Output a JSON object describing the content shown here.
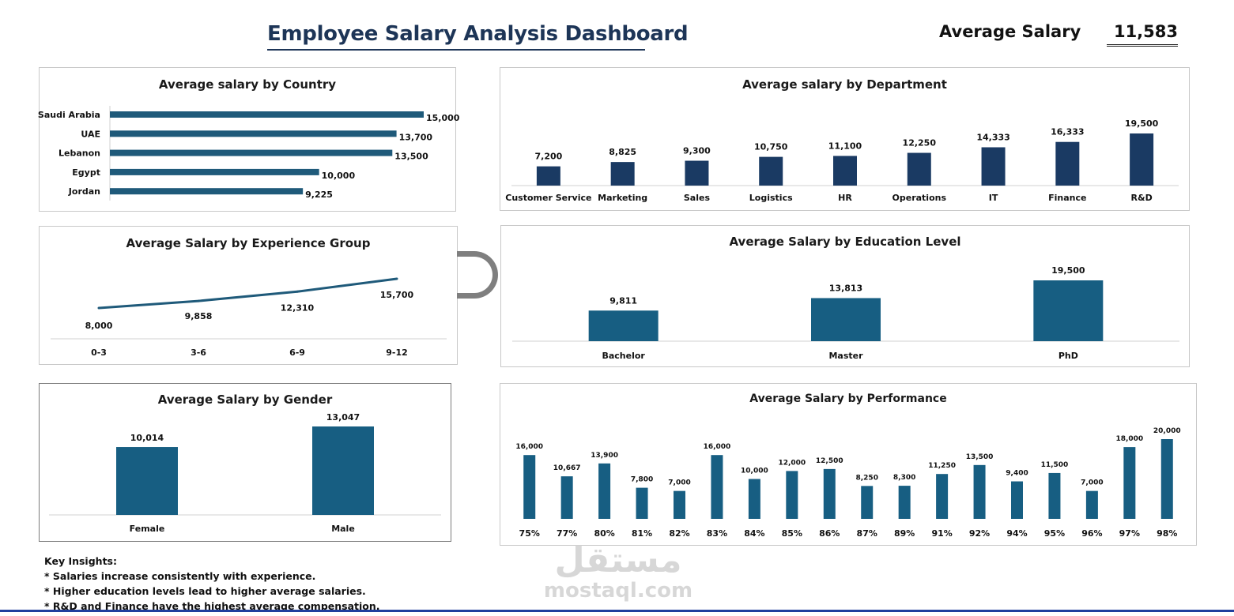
{
  "header": {
    "title": "Employee Salary Analysis Dashboard",
    "kpi_label": "Average Salary",
    "kpi_value": "11,583"
  },
  "colors": {
    "bar_dark": "#1a3a63",
    "bar_mid": "#175e82",
    "line": "#1f5a7a"
  },
  "chart_data": [
    {
      "id": "country",
      "type": "bar",
      "orientation": "horizontal",
      "title": "Average salary by Country",
      "categories": [
        "Saudi Arabia",
        "UAE",
        "Lebanon",
        "Egypt",
        "Jordan"
      ],
      "values": [
        15000,
        13700,
        13500,
        10000,
        9225
      ],
      "labels": [
        "15,000",
        "13,700",
        "13,500",
        "10,000",
        "9,225"
      ],
      "xlim": [
        0,
        15000
      ]
    },
    {
      "id": "department",
      "type": "bar",
      "title": "Average salary by Department",
      "categories": [
        "Customer Service",
        "Marketing",
        "Sales",
        "Logistics",
        "HR",
        "Operations",
        "IT",
        "Finance",
        "R&D"
      ],
      "values": [
        7200,
        8825,
        9300,
        10750,
        11100,
        12250,
        14333,
        16333,
        19500
      ],
      "labels": [
        "7,200",
        "8,825",
        "9,300",
        "10,750",
        "11,100",
        "12,250",
        "14,333",
        "16,333",
        "19,500"
      ],
      "ylim": [
        0,
        20000
      ]
    },
    {
      "id": "experience",
      "type": "line",
      "title": "Average Salary by Experience Group",
      "categories": [
        "0-3",
        "3-6",
        "6-9",
        "9-12"
      ],
      "values": [
        8000,
        9858,
        12310,
        15700
      ],
      "labels": [
        "8,000",
        "9,858",
        "12,310",
        "15,700"
      ],
      "ylim": [
        0,
        20000
      ]
    },
    {
      "id": "education",
      "type": "bar",
      "title": "Average Salary by Education Level",
      "categories": [
        "Bachelor",
        "Master",
        "PhD"
      ],
      "values": [
        9811,
        13813,
        19500
      ],
      "labels": [
        "9,811",
        "13,813",
        "19,500"
      ],
      "ylim": [
        0,
        20000
      ]
    },
    {
      "id": "gender",
      "type": "bar",
      "title": "Average Salary by Gender",
      "categories": [
        "Female",
        "Male"
      ],
      "values": [
        10014,
        13047
      ],
      "labels": [
        "10,014",
        "13,047"
      ],
      "ylim": [
        0,
        14000
      ]
    },
    {
      "id": "performance",
      "type": "bar",
      "title": "Average Salary by Performance",
      "categories": [
        "75%",
        "77%",
        "80%",
        "81%",
        "82%",
        "83%",
        "84%",
        "85%",
        "86%",
        "87%",
        "89%",
        "91%",
        "92%",
        "94%",
        "95%",
        "96%",
        "97%",
        "98%"
      ],
      "values": [
        16000,
        10667,
        13900,
        7800,
        7000,
        16000,
        10000,
        12000,
        12500,
        8250,
        8300,
        11250,
        13500,
        9400,
        11500,
        7000,
        18000,
        20000
      ],
      "labels": [
        "16,000",
        "10,667",
        "13,900",
        "7,800",
        "7,000",
        "16,000",
        "10,000",
        "12,000",
        "12,500",
        "8,250",
        "8,300",
        "11,250",
        "13,500",
        "9,400",
        "11,500",
        "7,000",
        "18,000",
        "20,000"
      ],
      "ylim": [
        0,
        20000
      ]
    }
  ],
  "insights": {
    "heading": "Key Insights:",
    "items": [
      "* Salaries increase consistently with experience.",
      "* Higher education levels lead to higher average salaries.",
      "* R&D and Finance have the highest average compensation."
    ]
  },
  "watermark": {
    "arabic": "مستقل",
    "latin": "mostaql.com"
  }
}
